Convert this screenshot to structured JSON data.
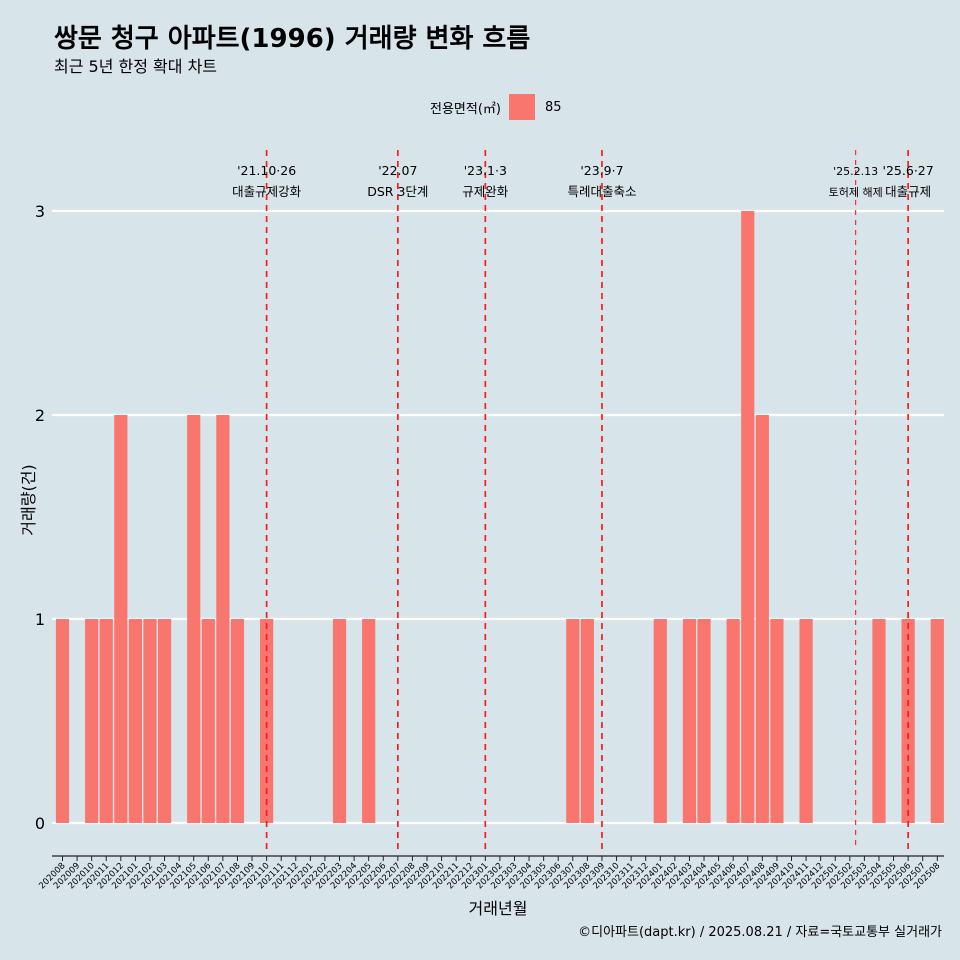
{
  "title": "쌍문 청구 아파트(1996) 거래량 변화 흐름",
  "subtitle": "최근 5년 한정 확대 차트",
  "legend": {
    "label": "전용면적(㎡)",
    "entry": "85",
    "color": "#f8766d"
  },
  "caption": "©디아파트(dapt.kr) / 2025.08.21 / 자료=국토교통부 실거래가",
  "chart_data": {
    "type": "bar",
    "title": "쌍문 청구 아파트(1996) 거래량 변화 흐름",
    "xlabel": "거래년월",
    "ylabel": "거래량(건)",
    "ylim": [
      0,
      3
    ],
    "yticks": [
      0,
      1,
      2,
      3
    ],
    "grid": true,
    "categories": [
      "202008",
      "202009",
      "202010",
      "202011",
      "202012",
      "202101",
      "202102",
      "202103",
      "202104",
      "202105",
      "202106",
      "202107",
      "202108",
      "202109",
      "202110",
      "202111",
      "202112",
      "202201",
      "202202",
      "202203",
      "202204",
      "202205",
      "202206",
      "202207",
      "202208",
      "202209",
      "202210",
      "202211",
      "202212",
      "202301",
      "202302",
      "202303",
      "202304",
      "202305",
      "202306",
      "202307",
      "202308",
      "202309",
      "202310",
      "202311",
      "202312",
      "202401",
      "202402",
      "202403",
      "202404",
      "202405",
      "202406",
      "202407",
      "202408",
      "202409",
      "202410",
      "202411",
      "202412",
      "202501",
      "202502",
      "202503",
      "202504",
      "202505",
      "202506",
      "202507",
      "202508"
    ],
    "series": [
      {
        "name": "85",
        "color": "#f8766d",
        "values": [
          1,
          0,
          1,
          1,
          2,
          1,
          1,
          1,
          0,
          2,
          1,
          2,
          1,
          0,
          1,
          0,
          0,
          0,
          0,
          1,
          0,
          1,
          0,
          0,
          0,
          0,
          0,
          0,
          0,
          0,
          0,
          0,
          0,
          0,
          0,
          1,
          1,
          0,
          0,
          0,
          0,
          1,
          0,
          1,
          1,
          0,
          1,
          3,
          2,
          1,
          0,
          1,
          0,
          0,
          0,
          0,
          1,
          0,
          1,
          0,
          1
        ]
      }
    ],
    "annotations": [
      {
        "position": 14.0,
        "date": "'21.10·26",
        "label": "대출규제강화",
        "style": "thick"
      },
      {
        "position": 23.0,
        "date": "'22.07",
        "label": "DSR 3단계",
        "style": "thick"
      },
      {
        "position": 29.0,
        "date": "'23.1·3",
        "label": "규제완화",
        "style": "thick"
      },
      {
        "position": 37.0,
        "date": "'23.9·7",
        "label": "특례대출축소",
        "style": "thick"
      },
      {
        "position": 54.4,
        "date": "'25.2.13",
        "label": "토허제 해제",
        "style": "thin"
      },
      {
        "position": 58.0,
        "date": "'25.6·27",
        "label": "대출규제",
        "style": "thick"
      }
    ]
  }
}
